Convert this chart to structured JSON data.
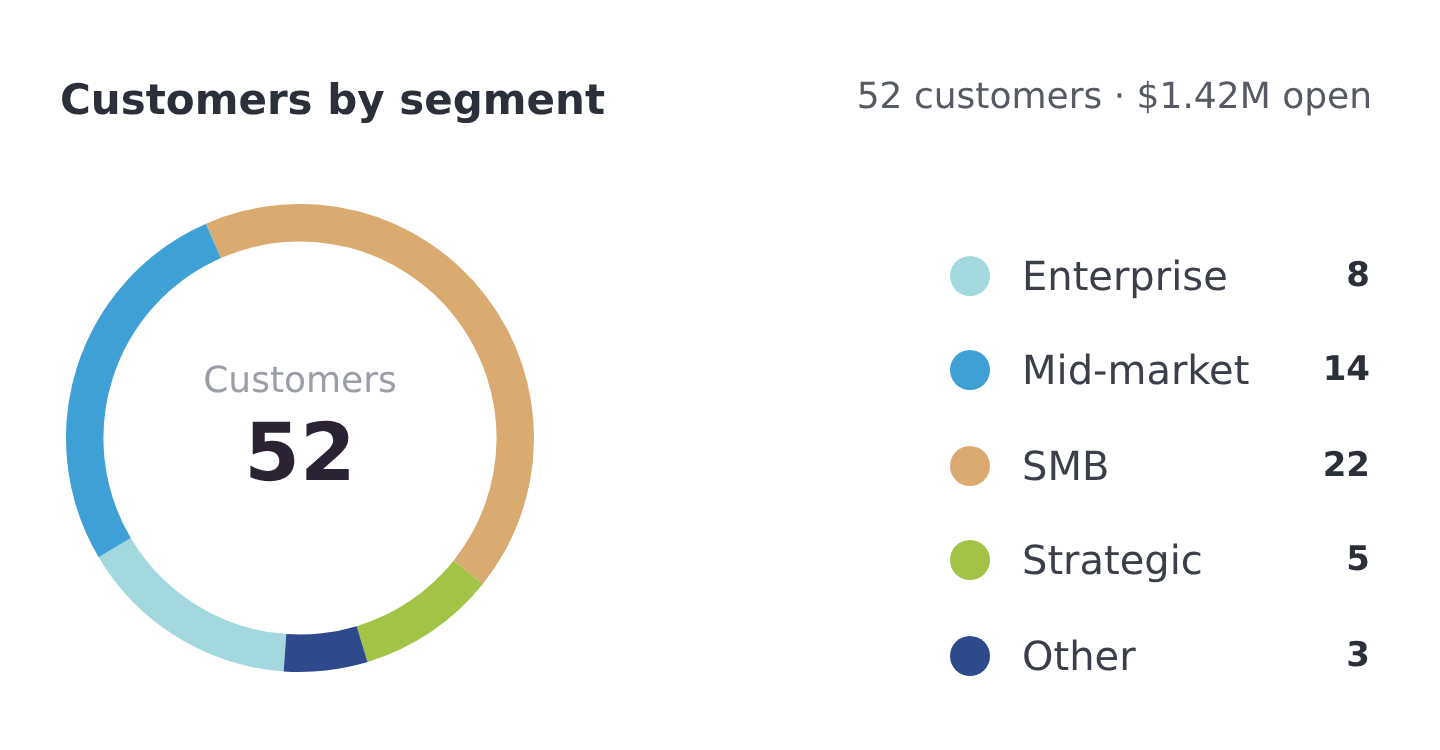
{
  "chart_data": {
    "type": "donut",
    "title": "Customers by segment",
    "subtitle": "52 customers · $1.42M open",
    "categories": [
      "Enterprise",
      "Mid-market",
      "SMB",
      "Strategic",
      "Other"
    ],
    "values": [
      8,
      14,
      22,
      5,
      3
    ],
    "colors": [
      "#a3d9de",
      "#3fa0d6",
      "#d9ab70",
      "#a3c347",
      "#2e4a8c"
    ],
    "annotations": [
      "Customers",
      "52"
    ],
    "legend": "right",
    "data_labels": true
  }
}
